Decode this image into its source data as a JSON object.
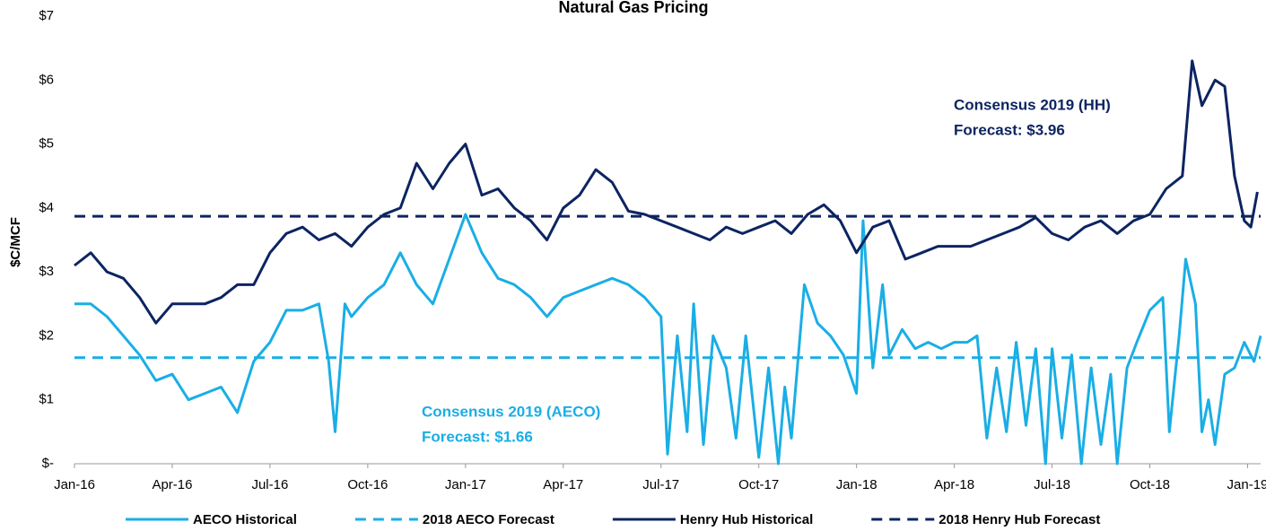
{
  "chart_data": {
    "type": "line",
    "title": "Natural Gas Pricing",
    "y_label": "$C/MCF",
    "xlim": [
      0,
      36.4
    ],
    "xticks": [
      {
        "value": 0,
        "label": "Jan-16"
      },
      {
        "value": 3,
        "label": "Apr-16"
      },
      {
        "value": 6,
        "label": "Jul-16"
      },
      {
        "value": 9,
        "label": "Oct-16"
      },
      {
        "value": 12,
        "label": "Jan-17"
      },
      {
        "value": 15,
        "label": "Apr-17"
      },
      {
        "value": 18,
        "label": "Jul-17"
      },
      {
        "value": 21,
        "label": "Oct-17"
      },
      {
        "value": 24,
        "label": "Jan-18"
      },
      {
        "value": 27,
        "label": "Apr-18"
      },
      {
        "value": 30,
        "label": "Jul-18"
      },
      {
        "value": 33,
        "label": "Oct-18"
      },
      {
        "value": 36,
        "label": "Jan-19"
      }
    ],
    "ylim": [
      0,
      7
    ],
    "yticks": [
      {
        "value": 0,
        "label": "$-"
      },
      {
        "value": 1,
        "label": "$1"
      },
      {
        "value": 2,
        "label": "$2"
      },
      {
        "value": 3,
        "label": "$3"
      },
      {
        "value": 4,
        "label": "$4"
      },
      {
        "value": 5,
        "label": "$5"
      },
      {
        "value": 6,
        "label": "$6"
      },
      {
        "value": 7,
        "label": "$7"
      }
    ],
    "legend": "bottom",
    "series": [
      {
        "name": "AECO Historical",
        "color": "#1aaee5",
        "dash": false,
        "x": [
          0,
          0.5,
          1,
          1.5,
          2,
          2.5,
          3,
          3.5,
          4,
          4.5,
          5,
          5.5,
          6,
          6.5,
          7,
          7.5,
          7.8,
          8,
          8.3,
          8.5,
          9,
          9.5,
          10,
          10.5,
          11,
          11.5,
          12,
          12.5,
          13,
          13.5,
          14,
          14.5,
          15,
          15.5,
          16,
          16.5,
          17,
          17.5,
          18,
          18.2,
          18.5,
          18.8,
          19,
          19.3,
          19.6,
          20,
          20.3,
          20.6,
          21,
          21.3,
          21.6,
          21.8,
          22,
          22.4,
          22.8,
          23.2,
          23.6,
          24,
          24.2,
          24.5,
          24.8,
          25,
          25.4,
          25.8,
          26.2,
          26.6,
          27,
          27.4,
          27.7,
          28,
          28.3,
          28.6,
          28.9,
          29.2,
          29.5,
          29.8,
          30,
          30.3,
          30.6,
          30.9,
          31.2,
          31.5,
          31.8,
          32,
          32.3,
          32.6,
          33,
          33.4,
          33.6,
          33.9,
          34.1,
          34.4,
          34.6,
          34.8,
          35,
          35.3,
          35.6,
          35.9,
          36.2,
          36.4
        ],
        "values": [
          2.5,
          2.5,
          2.3,
          2.0,
          1.7,
          1.3,
          1.4,
          1.0,
          1.1,
          1.2,
          0.8,
          1.6,
          1.9,
          2.4,
          2.4,
          2.5,
          1.6,
          0.5,
          2.5,
          2.3,
          2.6,
          2.8,
          3.3,
          2.8,
          2.5,
          3.2,
          3.9,
          3.3,
          2.9,
          2.8,
          2.6,
          2.3,
          2.6,
          2.7,
          2.8,
          2.9,
          2.8,
          2.6,
          2.3,
          0.15,
          2.0,
          0.5,
          2.5,
          0.3,
          2.0,
          1.5,
          0.4,
          2.0,
          0.1,
          1.5,
          0.0,
          1.2,
          0.4,
          2.8,
          2.2,
          2.0,
          1.7,
          1.1,
          3.8,
          1.5,
          2.8,
          1.7,
          2.1,
          1.8,
          1.9,
          1.8,
          1.9,
          1.9,
          2.0,
          0.4,
          1.5,
          0.5,
          1.9,
          0.6,
          1.8,
          0.0,
          1.8,
          0.4,
          1.7,
          0.0,
          1.5,
          0.3,
          1.4,
          0.0,
          1.5,
          1.9,
          2.4,
          2.6,
          0.5,
          2.0,
          3.2,
          2.5,
          0.5,
          1.0,
          0.3,
          1.4,
          1.5,
          1.9,
          1.6,
          2.0
        ]
      },
      {
        "name": "2018 AECO Forecast",
        "color": "#1aaee5",
        "dash": true,
        "x": [
          0,
          36.4
        ],
        "values": [
          1.66,
          1.66
        ]
      },
      {
        "name": "Henry Hub Historical",
        "color": "#0c2461",
        "dash": false,
        "x": [
          0,
          0.5,
          1,
          1.5,
          2,
          2.5,
          3,
          3.5,
          4,
          4.5,
          5,
          5.5,
          6,
          6.5,
          7,
          7.5,
          8,
          8.5,
          9,
          9.5,
          10,
          10.5,
          11,
          11.5,
          12,
          12.5,
          13,
          13.5,
          14,
          14.5,
          15,
          15.5,
          16,
          16.5,
          17,
          17.5,
          18,
          18.5,
          19,
          19.5,
          20,
          20.5,
          21,
          21.5,
          22,
          22.5,
          23,
          23.5,
          24,
          24.5,
          25,
          25.5,
          26,
          26.5,
          27,
          27.5,
          28,
          28.5,
          29,
          29.5,
          30,
          30.5,
          31,
          31.5,
          32,
          32.5,
          33,
          33.5,
          34,
          34.3,
          34.6,
          35,
          35.3,
          35.6,
          35.9,
          36.1,
          36.3
        ],
        "values": [
          3.1,
          3.3,
          3.0,
          2.9,
          2.6,
          2.2,
          2.5,
          2.5,
          2.5,
          2.6,
          2.8,
          2.8,
          3.3,
          3.6,
          3.7,
          3.5,
          3.6,
          3.4,
          3.7,
          3.9,
          4.0,
          4.7,
          4.3,
          4.7,
          5.0,
          4.2,
          4.3,
          4.0,
          3.8,
          3.5,
          4.0,
          4.2,
          4.6,
          4.4,
          3.95,
          3.9,
          3.8,
          3.7,
          3.6,
          3.5,
          3.7,
          3.6,
          3.7,
          3.8,
          3.6,
          3.9,
          4.05,
          3.8,
          3.3,
          3.7,
          3.8,
          3.2,
          3.3,
          3.4,
          3.4,
          3.4,
          3.5,
          3.6,
          3.7,
          3.85,
          3.6,
          3.5,
          3.7,
          3.8,
          3.6,
          3.8,
          3.9,
          4.3,
          4.5,
          6.3,
          5.6,
          6.0,
          5.9,
          4.5,
          3.8,
          3.7,
          4.25
        ]
      },
      {
        "name": "2018 Henry Hub Forecast",
        "color": "#0c2461",
        "dash": true,
        "x": [
          0,
          36.4
        ],
        "values": [
          3.87,
          3.87
        ]
      }
    ],
    "annotations": [
      {
        "lines": [
          "Consensus 2019 (HH)",
          "Forecast: $3.96"
        ],
        "color": "#0c2461"
      },
      {
        "lines": [
          "Consensus 2019 (AECO)",
          "Forecast: $1.66"
        ],
        "color": "#1aaee5"
      }
    ]
  }
}
